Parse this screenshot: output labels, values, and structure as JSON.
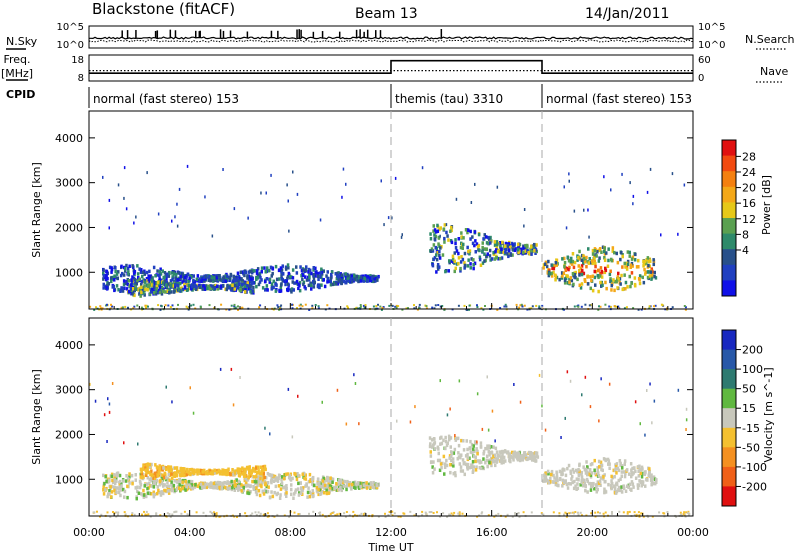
{
  "header": {
    "station": "Blackstone (fitACF)",
    "beam": "Beam 13",
    "date": "14/Jan/2011"
  },
  "left_labels": {
    "nsky": "N.Sky",
    "freq": "Freq.",
    "freq_unit": "[MHz]",
    "cpid": "CPID"
  },
  "right_labels": {
    "nsearch": "N.Search",
    "nave": "Nave"
  },
  "nsky_ticks": [
    "10^5",
    "10^0"
  ],
  "nsearch_ticks": [
    "10^5",
    "10^0"
  ],
  "freq_ticks": [
    "18",
    "8"
  ],
  "nave_ticks": [
    "60",
    "0"
  ],
  "cpid_modes": [
    {
      "label": "normal (fast stereo) 153",
      "start_h": 0,
      "end_h": 12
    },
    {
      "label": "themis (tau) 3310",
      "start_h": 12,
      "end_h": 18
    },
    {
      "label": "normal (fast stereo) 153",
      "start_h": 18,
      "end_h": 24
    }
  ],
  "power_colorbar": {
    "label": "Power [dB]",
    "ticks": [
      "28",
      "24",
      "20",
      "16",
      "12",
      "8",
      "4"
    ],
    "colors": [
      "#e01010",
      "#f24a10",
      "#f48010",
      "#f4a818",
      "#e6c818",
      "#5aa050",
      "#2e8a6a",
      "#28508a",
      "#2040c0",
      "#1010e8"
    ]
  },
  "velocity_colorbar": {
    "label": "Velocity [m s^-1]",
    "ticks": [
      "200",
      "100",
      "50",
      "15",
      "-15",
      "-50",
      "-100",
      "-200"
    ],
    "colors": [
      "#1828c0",
      "#2858a8",
      "#2e7a70",
      "#60b840",
      "#c8c8bc",
      "#f4c030",
      "#f49020",
      "#f06018",
      "#e01010"
    ]
  },
  "chart_data": [
    {
      "type": "heatmap",
      "name": "power",
      "ylabel": "Slant Range [km]",
      "y_ticks": [
        "4000",
        "3000",
        "2000",
        "1000"
      ],
      "ylim": [
        180,
        4600
      ],
      "xlim": [
        0,
        24
      ],
      "echo_regions": [
        {
          "start_h": 0.5,
          "end_h": 11.5,
          "range_km": [
            600,
            1200
          ],
          "dominant": "low"
        },
        {
          "start_h": 1.5,
          "end_h": 6.5,
          "range_km": [
            500,
            900
          ],
          "dominant": "mid"
        },
        {
          "start_h": 13.5,
          "end_h": 17.8,
          "range_km": [
            1000,
            2100
          ],
          "dominant": "mid"
        },
        {
          "start_h": 18.0,
          "end_h": 22.5,
          "range_km": [
            600,
            1600
          ],
          "dominant": "high"
        }
      ]
    },
    {
      "type": "heatmap",
      "name": "velocity",
      "ylabel": "Slant Range [km]",
      "y_ticks": [
        "4000",
        "3000",
        "2000",
        "1000"
      ],
      "ylim": [
        180,
        4600
      ],
      "xlim": [
        0,
        24
      ],
      "x_ticks": [
        "00:00",
        "04:00",
        "08:00",
        "12:00",
        "16:00",
        "20:00",
        "00:00"
      ],
      "xlabel": "Time UT",
      "echo_regions": [
        {
          "start_h": 0.5,
          "end_h": 11.5,
          "range_km": [
            600,
            1200
          ],
          "dominant": "low-negative"
        },
        {
          "start_h": 2.0,
          "end_h": 7.0,
          "range_km": [
            1000,
            1400
          ],
          "dominant": "negative"
        },
        {
          "start_h": 13.5,
          "end_h": 17.8,
          "range_km": [
            1100,
            2000
          ],
          "dominant": "near-zero"
        },
        {
          "start_h": 18.0,
          "end_h": 22.5,
          "range_km": [
            700,
            1500
          ],
          "dominant": "near-zero"
        }
      ]
    }
  ]
}
